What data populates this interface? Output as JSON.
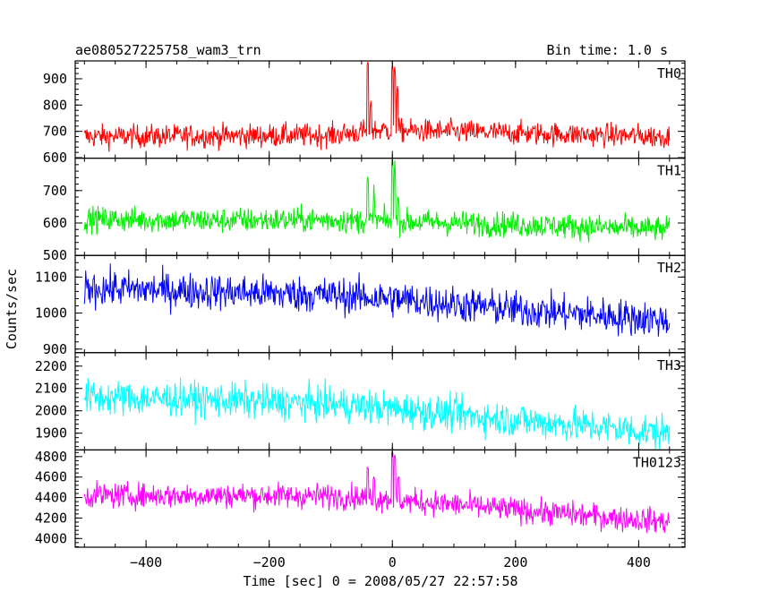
{
  "chart_data": {
    "type": "line",
    "title": "ae080527225758_wam3_trn",
    "bin_time_label": "Bin time: 1.0 s",
    "xlabel": "Time [sec] 0 = 2008/05/27 22:57:58",
    "ylabel": "Counts/sec",
    "xlim": [
      -515,
      475
    ],
    "x_ticks": [
      -400,
      -200,
      0,
      200,
      400
    ],
    "x_tick_labels": [
      "−400",
      "−200",
      "0",
      "200",
      "400"
    ],
    "data_x_range": [
      -500,
      450
    ],
    "grid": false,
    "panels": [
      {
        "name": "TH0",
        "color": "#ff0000",
        "ylim": [
          598,
          968
        ],
        "y_ticks": [
          600,
          700,
          800,
          900
        ],
        "y_tick_labels": [
          "600",
          "700",
          "800",
          "900"
        ],
        "profile": [
          [
            -500,
            680
          ],
          [
            -100,
            685
          ],
          [
            -60,
            695
          ],
          [
            -20,
            705
          ],
          [
            450,
            680
          ]
        ],
        "noise": 40,
        "bursts": [
          [
            -40,
            960
          ],
          [
            -35,
            820
          ],
          [
            0,
            960
          ],
          [
            4,
            940
          ],
          [
            8,
            880
          ]
        ]
      },
      {
        "name": "TH1",
        "color": "#00ee00",
        "ylim": [
          500,
          800
        ],
        "y_ticks": [
          500,
          600,
          700
        ],
        "y_tick_labels": [
          "500",
          "600",
          "700"
        ],
        "profile": [
          [
            -500,
            612
          ],
          [
            -300,
            608
          ],
          [
            -100,
            610
          ],
          [
            0,
            605
          ],
          [
            200,
            595
          ],
          [
            450,
            580
          ]
        ],
        "noise": 35,
        "bursts": [
          [
            -40,
            740
          ],
          [
            -30,
            700
          ],
          [
            0,
            800
          ],
          [
            4,
            780
          ],
          [
            10,
            690
          ]
        ]
      },
      {
        "name": "TH2",
        "color": "#0000ff",
        "ylim": [
          890,
          1160
        ],
        "y_ticks": [
          900,
          1000,
          1100
        ],
        "y_tick_labels": [
          "900",
          "1000",
          "1100"
        ],
        "profile": [
          [
            -500,
            1070
          ],
          [
            -300,
            1060
          ],
          [
            -100,
            1050
          ],
          [
            0,
            1040
          ],
          [
            200,
            1010
          ],
          [
            450,
            980
          ]
        ],
        "noise": 45,
        "bursts": []
      },
      {
        "name": "TH3",
        "color": "#00ffff",
        "ylim": [
          1825,
          2260
        ],
        "y_ticks": [
          1900,
          2000,
          2100,
          2200
        ],
        "y_tick_labels": [
          "1900",
          "2000",
          "2100",
          "2200"
        ],
        "profile": [
          [
            -500,
            2060
          ],
          [
            -300,
            2050
          ],
          [
            -100,
            2030
          ],
          [
            0,
            2010
          ],
          [
            200,
            1960
          ],
          [
            450,
            1900
          ]
        ],
        "noise": 70,
        "bursts": []
      },
      {
        "name": "TH0123",
        "color": "#ff00ff",
        "ylim": [
          3915,
          4865
        ],
        "y_ticks": [
          4000,
          4200,
          4400,
          4600,
          4800
        ],
        "y_tick_labels": [
          "4000",
          "4200",
          "4400",
          "4600",
          "4800"
        ],
        "profile": [
          [
            -500,
            4420
          ],
          [
            -200,
            4420
          ],
          [
            -60,
            4410
          ],
          [
            0,
            4380
          ],
          [
            200,
            4280
          ],
          [
            450,
            4160
          ]
        ],
        "noise": 110,
        "bursts": [
          [
            -40,
            4700
          ],
          [
            -30,
            4600
          ],
          [
            0,
            4860
          ],
          [
            4,
            4800
          ],
          [
            10,
            4600
          ]
        ]
      }
    ]
  }
}
